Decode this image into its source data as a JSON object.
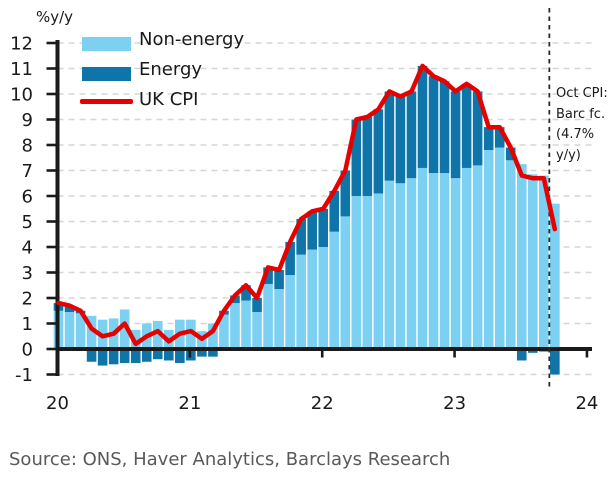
{
  "source": "Source: ONS, Haver Analytics, Barclays Research",
  "chart_data": {
    "type": "bar",
    "subtype": "stacked-monthly-bars-with-line",
    "ylabel": "%y/y",
    "ylim": [
      -1,
      12
    ],
    "grid": "horizontal-dashed",
    "legend_position": "top-left-inside",
    "y_ticks": [
      -1,
      0,
      1,
      2,
      3,
      4,
      5,
      6,
      7,
      8,
      9,
      10,
      11,
      12
    ],
    "x_ticks": [
      {
        "label": "20",
        "month_index": 0
      },
      {
        "label": "21",
        "month_index": 12
      },
      {
        "label": "22",
        "month_index": 24
      },
      {
        "label": "23",
        "month_index": 36
      },
      {
        "label": "24",
        "month_index": 48
      }
    ],
    "x_range_note": "monthly bars Jan 2020 through Oct 2023 (Oct 2023 = Barclays forecast)",
    "series": [
      {
        "name": "Non-energy",
        "color": "#7cd0f1",
        "values": [
          1.5,
          1.45,
          1.4,
          1.3,
          1.15,
          1.2,
          1.55,
          0.75,
          1.0,
          1.1,
          0.75,
          1.15,
          1.15,
          0.7,
          1.0,
          1.35,
          1.8,
          1.9,
          1.45,
          2.55,
          2.35,
          2.9,
          3.7,
          3.9,
          4.0,
          4.6,
          5.2,
          6.0,
          6.0,
          6.1,
          6.6,
          6.5,
          6.7,
          7.1,
          6.9,
          6.9,
          6.7,
          7.1,
          7.2,
          7.8,
          7.9,
          7.4,
          7.25,
          6.85,
          6.8,
          5.7
        ]
      },
      {
        "name": "Energy",
        "color": "#0f75a8",
        "values": [
          0.3,
          0.25,
          0.1,
          -0.5,
          -0.65,
          -0.6,
          -0.55,
          -0.55,
          -0.5,
          -0.4,
          -0.45,
          -0.55,
          -0.45,
          -0.3,
          -0.3,
          0.15,
          0.3,
          0.6,
          0.55,
          0.65,
          0.75,
          1.3,
          1.4,
          1.5,
          1.5,
          1.6,
          1.8,
          3.0,
          3.1,
          3.3,
          3.5,
          3.4,
          3.4,
          4.0,
          3.8,
          3.6,
          3.4,
          3.3,
          2.9,
          0.9,
          0.8,
          0.5,
          -0.45,
          -0.15,
          -0.1,
          -1.0
        ]
      }
    ],
    "line": {
      "name": "UK CPI",
      "color": "#e60000",
      "values": [
        1.8,
        1.7,
        1.5,
        0.8,
        0.5,
        0.6,
        1.0,
        0.2,
        0.5,
        0.7,
        0.3,
        0.6,
        0.7,
        0.4,
        0.7,
        1.5,
        2.1,
        2.5,
        2.0,
        3.2,
        3.1,
        4.2,
        5.1,
        5.4,
        5.5,
        6.2,
        7.0,
        9.0,
        9.1,
        9.4,
        10.1,
        9.9,
        10.1,
        11.1,
        10.7,
        10.5,
        10.1,
        10.4,
        10.1,
        8.7,
        8.7,
        7.9,
        6.8,
        6.7,
        6.7,
        4.7
      ]
    },
    "forecast_divider_after_index": 44,
    "annotation": {
      "lines": [
        "Oct CPI:",
        "Barc fc.",
        "(4.7%",
        "y/y)"
      ]
    },
    "colors": {
      "grid": "#d6d6d6",
      "axis": "#1a1a1a",
      "divider": "#2b2b2b",
      "tick_text": "#1a1a1a"
    }
  }
}
